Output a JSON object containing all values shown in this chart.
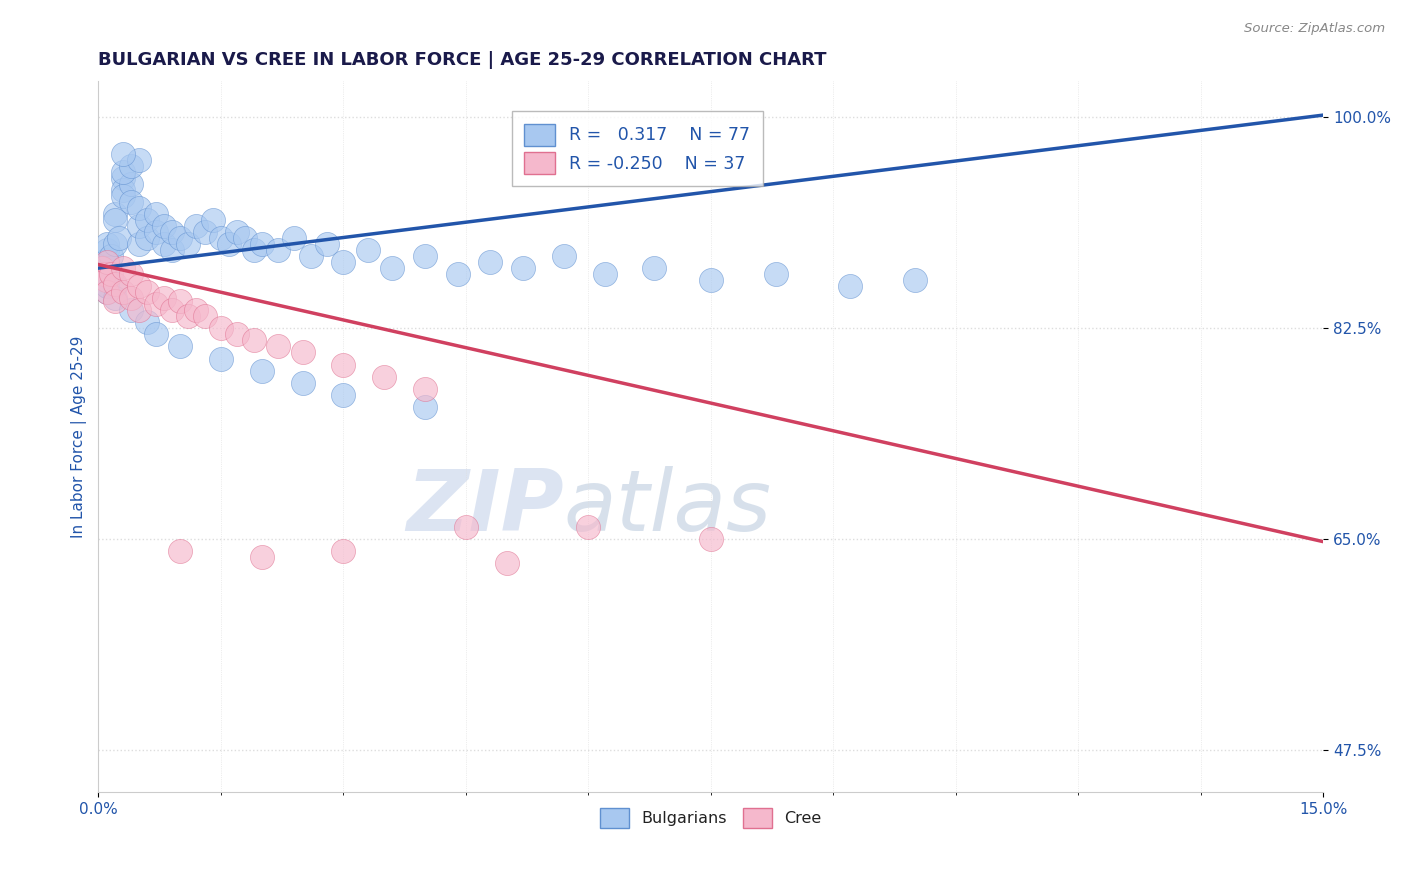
{
  "title": "BULGARIAN VS CREE IN LABOR FORCE | AGE 25-29 CORRELATION CHART",
  "source_text": "Source: ZipAtlas.com",
  "ylabel": "In Labor Force | Age 25-29",
  "xlim": [
    0.0,
    0.15
  ],
  "ylim": [
    0.44,
    1.03
  ],
  "xtick_major": [
    0.0,
    0.15
  ],
  "xticklabels": [
    "0.0%",
    "15.0%"
  ],
  "yticks": [
    0.475,
    0.65,
    0.825,
    1.0
  ],
  "yticklabels": [
    "47.5%",
    "65.0%",
    "82.5%",
    "100.0%"
  ],
  "r_bulgarian": 0.317,
  "n_bulgarian": 77,
  "r_cree": -0.25,
  "n_cree": 37,
  "bulgarian_color": "#a8c8f0",
  "cree_color": "#f5b8cc",
  "bulgarian_edge": "#6090d0",
  "cree_edge": "#e07090",
  "trend_bulgarian_color": "#2255aa",
  "trend_cree_color": "#d0406070",
  "trend_cree_solid": "#d04060",
  "watermark_zip": "ZIP",
  "watermark_atlas": "atlas",
  "watermark_color_zip": "#c8d4e8",
  "watermark_color_atlas": "#a8bcd8",
  "legend_text_color": "#2255aa",
  "title_color": "#1a1a4a",
  "axis_label_color": "#2255aa",
  "tick_color": "#2255aa",
  "grid_color": "#dddddd",
  "trend_blue_x0": 0.0,
  "trend_blue_y0": 0.875,
  "trend_blue_x1": 0.15,
  "trend_blue_y1": 1.002,
  "trend_pink_x0": 0.0,
  "trend_pink_y0": 0.878,
  "trend_pink_x1": 0.15,
  "trend_pink_y1": 0.648,
  "bulg_x": [
    0.0005,
    0.0006,
    0.0007,
    0.0008,
    0.0009,
    0.001,
    0.001,
    0.001,
    0.001,
    0.001,
    0.0015,
    0.002,
    0.002,
    0.002,
    0.0025,
    0.003,
    0.003,
    0.003,
    0.004,
    0.004,
    0.005,
    0.005,
    0.005,
    0.006,
    0.006,
    0.007,
    0.007,
    0.008,
    0.008,
    0.009,
    0.009,
    0.01,
    0.011,
    0.012,
    0.013,
    0.014,
    0.015,
    0.016,
    0.017,
    0.018,
    0.019,
    0.02,
    0.022,
    0.024,
    0.026,
    0.028,
    0.03,
    0.033,
    0.036,
    0.04,
    0.044,
    0.048,
    0.052,
    0.057,
    0.062,
    0.068,
    0.075,
    0.083,
    0.092,
    0.1,
    0.001,
    0.001,
    0.002,
    0.002,
    0.003,
    0.004,
    0.005,
    0.003,
    0.004,
    0.006,
    0.007,
    0.01,
    0.015,
    0.02,
    0.025,
    0.03,
    0.04
  ],
  "bulg_y": [
    0.875,
    0.88,
    0.872,
    0.878,
    0.882,
    0.865,
    0.87,
    0.89,
    0.895,
    0.86,
    0.885,
    0.92,
    0.915,
    0.895,
    0.9,
    0.95,
    0.94,
    0.935,
    0.945,
    0.93,
    0.895,
    0.91,
    0.925,
    0.9,
    0.915,
    0.905,
    0.92,
    0.895,
    0.91,
    0.89,
    0.905,
    0.9,
    0.895,
    0.91,
    0.905,
    0.915,
    0.9,
    0.895,
    0.905,
    0.9,
    0.89,
    0.895,
    0.89,
    0.9,
    0.885,
    0.895,
    0.88,
    0.89,
    0.875,
    0.885,
    0.87,
    0.88,
    0.875,
    0.885,
    0.87,
    0.875,
    0.865,
    0.87,
    0.86,
    0.865,
    0.855,
    0.86,
    0.86,
    0.85,
    0.955,
    0.96,
    0.965,
    0.97,
    0.84,
    0.83,
    0.82,
    0.81,
    0.8,
    0.79,
    0.78,
    0.77,
    0.76
  ],
  "cree_x": [
    0.0005,
    0.0007,
    0.0009,
    0.001,
    0.001,
    0.0015,
    0.002,
    0.002,
    0.003,
    0.003,
    0.004,
    0.004,
    0.005,
    0.005,
    0.006,
    0.007,
    0.008,
    0.009,
    0.01,
    0.011,
    0.012,
    0.013,
    0.015,
    0.017,
    0.019,
    0.022,
    0.025,
    0.03,
    0.035,
    0.04,
    0.045,
    0.06,
    0.075,
    0.01,
    0.02,
    0.03,
    0.05
  ],
  "cree_y": [
    0.875,
    0.87,
    0.865,
    0.88,
    0.855,
    0.87,
    0.862,
    0.848,
    0.875,
    0.855,
    0.87,
    0.85,
    0.86,
    0.84,
    0.855,
    0.845,
    0.85,
    0.84,
    0.848,
    0.835,
    0.84,
    0.835,
    0.825,
    0.82,
    0.815,
    0.81,
    0.805,
    0.795,
    0.785,
    0.775,
    0.66,
    0.66,
    0.65,
    0.64,
    0.635,
    0.64,
    0.63
  ],
  "figsize": [
    14.06,
    8.92
  ],
  "dpi": 100
}
